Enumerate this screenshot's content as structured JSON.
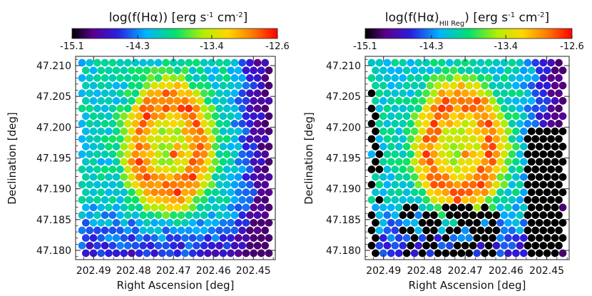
{
  "chart_data": [
    {
      "type": "heatmap",
      "title": "log(f(Hα)) [erg s⁻¹ cm⁻²]",
      "title_parts": {
        "prefix": "log(f(Hα)",
        "subscript": "",
        "suffix": ") [erg s",
        "sup1": "-1",
        "mid": " cm",
        "sup2": "-2",
        "end": "]"
      },
      "xlabel": "Right Ascension [deg]",
      "ylabel": "Declination [deg]",
      "xlim": [
        202.4945,
        202.4445
      ],
      "ylim": [
        47.1785,
        47.2115
      ],
      "xticks": [
        202.49,
        202.48,
        202.47,
        202.46,
        202.45
      ],
      "xtick_labels": [
        "202.49",
        "202.48",
        "202.47",
        "202.46",
        "202.45"
      ],
      "yticks": [
        47.18,
        47.185,
        47.19,
        47.195,
        47.2,
        47.205,
        47.21
      ],
      "ytick_labels": [
        "47.180",
        "47.185",
        "47.190",
        "47.195",
        "47.200",
        "47.205",
        "47.210"
      ],
      "colorbar": {
        "min": -15.1,
        "max": -12.6,
        "ticks": [
          -15.1,
          -14.3,
          -13.4,
          -12.6
        ],
        "tick_labels": [
          "-15.1",
          "-14.3",
          "-13.4",
          "-12.6"
        ]
      },
      "model": {
        "nucleus_ra": 202.4695,
        "nucleus_dec": 47.1957,
        "ring_center_ra": 202.4712,
        "ring_center_dec": 47.1968,
        "ring_radius_deg": 0.0079,
        "background": -14.05,
        "peak": -12.7,
        "ring_peak": -12.85,
        "east_floor": -14.9
      }
    },
    {
      "type": "heatmap",
      "title": "log(f(Hα)_HII Reg) [erg s⁻¹ cm⁻²]",
      "title_parts": {
        "prefix": "log(f(Hα)",
        "subscript": "HII Reg",
        "suffix": ") [erg s",
        "sup1": "-1",
        "mid": " cm",
        "sup2": "-2",
        "end": "]"
      },
      "xlabel": "Right Ascension [deg]",
      "ylabel": "Declination [deg]",
      "xlim": [
        202.4945,
        202.4445
      ],
      "ylim": [
        47.1785,
        47.2115
      ],
      "xticks": [
        202.49,
        202.48,
        202.47,
        202.46,
        202.45
      ],
      "xtick_labels": [
        "202.49",
        "202.48",
        "202.47",
        "202.46",
        "202.45"
      ],
      "yticks": [
        47.18,
        47.185,
        47.19,
        47.195,
        47.2,
        47.205,
        47.21
      ],
      "ytick_labels": [
        "47.180",
        "47.185",
        "47.190",
        "47.195",
        "47.200",
        "47.205",
        "47.210"
      ],
      "colorbar": {
        "min": -15.1,
        "max": -12.6,
        "ticks": [
          -15.1,
          -14.3,
          -13.4,
          -12.6
        ],
        "tick_labels": [
          "-15.1",
          "-14.3",
          "-13.4",
          "-12.6"
        ]
      },
      "model": {
        "nucleus_ra": 202.4695,
        "nucleus_dec": 47.1957,
        "ring_center_ra": 202.4712,
        "ring_center_dec": 47.1968,
        "ring_radius_deg": 0.0079,
        "background": -14.05,
        "peak": -12.7,
        "ring_peak": -12.85,
        "east_floor": -14.9,
        "masked_value": -15.1
      }
    }
  ],
  "colors": {
    "colormap": [
      "#000000",
      "#5a008a",
      "#2a1ee0",
      "#00b4ff",
      "#00e070",
      "#b4ee00",
      "#ffd600",
      "#ff7a00",
      "#ff0000"
    ],
    "frame": "#222222",
    "masked": "#000000"
  }
}
